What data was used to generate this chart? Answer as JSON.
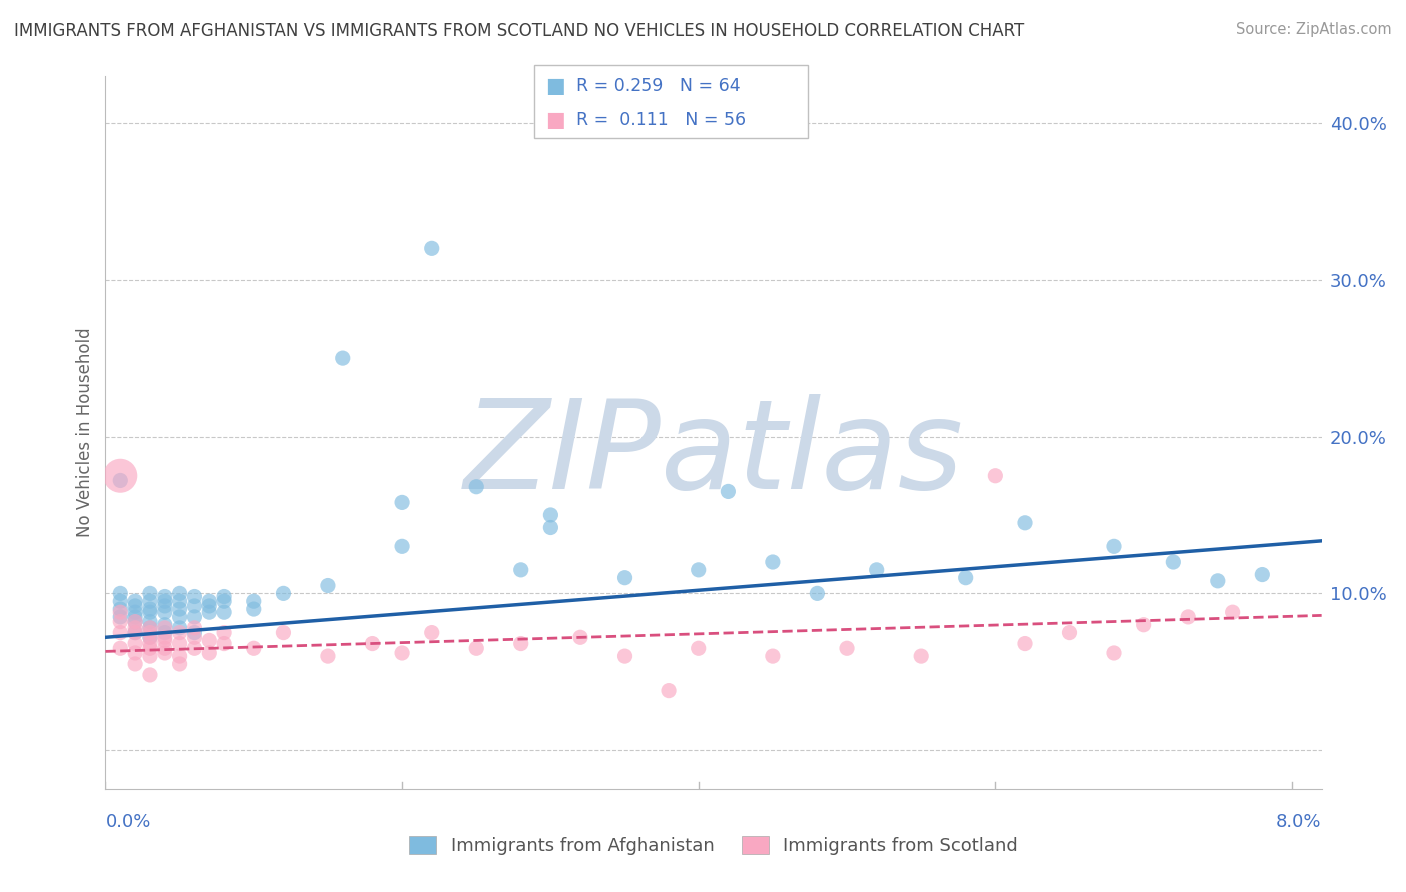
{
  "title": "IMMIGRANTS FROM AFGHANISTAN VS IMMIGRANTS FROM SCOTLAND NO VEHICLES IN HOUSEHOLD CORRELATION CHART",
  "source": "Source: ZipAtlas.com",
  "ylabel": "No Vehicles in Household",
  "xlim": [
    0.0,
    0.082
  ],
  "ylim": [
    -0.025,
    0.43
  ],
  "yticks": [
    0.0,
    0.1,
    0.2,
    0.3,
    0.4
  ],
  "ytick_labels": [
    "",
    "10.0%",
    "20.0%",
    "30.0%",
    "40.0%"
  ],
  "xtick_left": "0.0%",
  "xtick_right": "8.0%",
  "watermark": "ZIPatlas",
  "watermark_color": "#ccd9e8",
  "blue_color": "#7fbbdf",
  "pink_color": "#f9a8c2",
  "blue_line_color": "#1f5fa6",
  "pink_line_color": "#d94f7e",
  "grid_color": "#c8c8c8",
  "title_color": "#404040",
  "axis_label_color": "#4472c4",
  "legend_text_color": "#4472c4",
  "blue_intercept": 0.072,
  "blue_slope": 0.75,
  "pink_intercept": 0.063,
  "pink_slope": 0.28,
  "blue_x": [
    0.001,
    0.001,
    0.001,
    0.001,
    0.001,
    0.002,
    0.002,
    0.002,
    0.002,
    0.002,
    0.002,
    0.003,
    0.003,
    0.003,
    0.003,
    0.003,
    0.003,
    0.003,
    0.004,
    0.004,
    0.004,
    0.004,
    0.004,
    0.004,
    0.005,
    0.005,
    0.005,
    0.005,
    0.005,
    0.006,
    0.006,
    0.006,
    0.006,
    0.007,
    0.007,
    0.007,
    0.008,
    0.008,
    0.008,
    0.01,
    0.01,
    0.012,
    0.015,
    0.016,
    0.02,
    0.022,
    0.028,
    0.03,
    0.035,
    0.04,
    0.042,
    0.045,
    0.048,
    0.052,
    0.058,
    0.062,
    0.068,
    0.072,
    0.075,
    0.078,
    0.02,
    0.025,
    0.03
  ],
  "blue_y": [
    0.095,
    0.1,
    0.085,
    0.09,
    0.172,
    0.085,
    0.082,
    0.092,
    0.088,
    0.075,
    0.095,
    0.082,
    0.088,
    0.095,
    0.078,
    0.072,
    0.09,
    0.1,
    0.088,
    0.095,
    0.075,
    0.092,
    0.08,
    0.098,
    0.09,
    0.095,
    0.085,
    0.1,
    0.078,
    0.092,
    0.085,
    0.098,
    0.075,
    0.088,
    0.092,
    0.095,
    0.095,
    0.088,
    0.098,
    0.09,
    0.095,
    0.1,
    0.105,
    0.25,
    0.13,
    0.32,
    0.115,
    0.15,
    0.11,
    0.115,
    0.165,
    0.12,
    0.1,
    0.115,
    0.11,
    0.145,
    0.13,
    0.12,
    0.108,
    0.112,
    0.158,
    0.168,
    0.142
  ],
  "blue_sizes": [
    120,
    120,
    120,
    120,
    120,
    120,
    120,
    120,
    120,
    120,
    120,
    120,
    120,
    120,
    120,
    120,
    120,
    120,
    120,
    120,
    120,
    120,
    120,
    120,
    120,
    120,
    120,
    120,
    120,
    120,
    120,
    120,
    120,
    120,
    120,
    120,
    120,
    120,
    120,
    120,
    120,
    120,
    120,
    120,
    120,
    120,
    120,
    120,
    120,
    120,
    120,
    120,
    120,
    120,
    120,
    120,
    120,
    120,
    120,
    120,
    120,
    120,
    120
  ],
  "pink_x": [
    0.001,
    0.001,
    0.001,
    0.001,
    0.001,
    0.002,
    0.002,
    0.002,
    0.002,
    0.002,
    0.002,
    0.003,
    0.003,
    0.003,
    0.003,
    0.003,
    0.003,
    0.003,
    0.004,
    0.004,
    0.004,
    0.004,
    0.004,
    0.005,
    0.005,
    0.005,
    0.005,
    0.006,
    0.006,
    0.006,
    0.007,
    0.007,
    0.008,
    0.008,
    0.01,
    0.012,
    0.015,
    0.018,
    0.02,
    0.022,
    0.025,
    0.028,
    0.032,
    0.035,
    0.038,
    0.04,
    0.045,
    0.05,
    0.055,
    0.06,
    0.062,
    0.065,
    0.068,
    0.07,
    0.073,
    0.076
  ],
  "pink_y": [
    0.175,
    0.088,
    0.075,
    0.065,
    0.082,
    0.078,
    0.068,
    0.075,
    0.082,
    0.062,
    0.055,
    0.072,
    0.065,
    0.078,
    0.06,
    0.068,
    0.048,
    0.075,
    0.07,
    0.062,
    0.078,
    0.065,
    0.072,
    0.068,
    0.075,
    0.06,
    0.055,
    0.072,
    0.078,
    0.065,
    0.07,
    0.062,
    0.075,
    0.068,
    0.065,
    0.075,
    0.06,
    0.068,
    0.062,
    0.075,
    0.065,
    0.068,
    0.072,
    0.06,
    0.038,
    0.065,
    0.06,
    0.065,
    0.06,
    0.175,
    0.068,
    0.075,
    0.062,
    0.08,
    0.085,
    0.088
  ],
  "pink_sizes": [
    600,
    120,
    120,
    120,
    120,
    120,
    120,
    120,
    120,
    120,
    120,
    120,
    120,
    120,
    120,
    120,
    120,
    120,
    120,
    120,
    120,
    120,
    120,
    120,
    120,
    120,
    120,
    120,
    120,
    120,
    120,
    120,
    120,
    120,
    120,
    120,
    120,
    120,
    120,
    120,
    120,
    120,
    120,
    120,
    120,
    120,
    120,
    120,
    120,
    120,
    120,
    120,
    120,
    120,
    120,
    120
  ]
}
